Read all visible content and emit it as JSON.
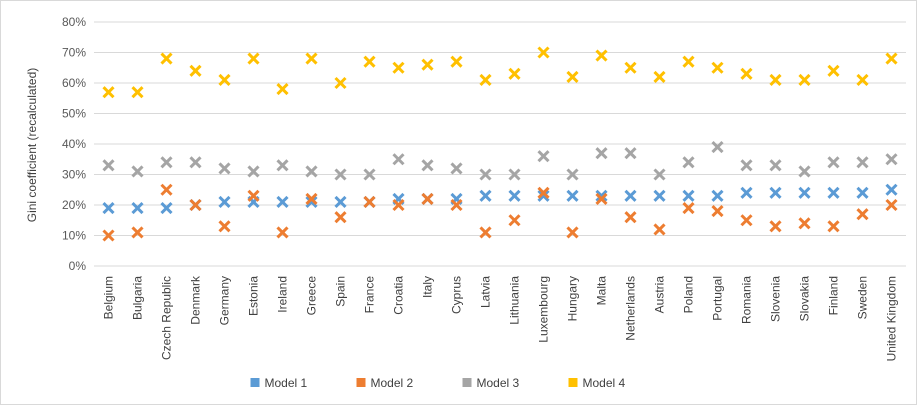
{
  "chart_data": {
    "type": "scatter",
    "title": "",
    "xlabel": "",
    "ylabel": "Gini coefficient (recalculated)",
    "ylim": [
      0,
      0.8
    ],
    "yticks": [
      "0%",
      "10%",
      "20%",
      "30%",
      "40%",
      "50%",
      "60%",
      "70%",
      "80%"
    ],
    "grid": true,
    "legend_position": "bottom",
    "categories": [
      "Belgium",
      "Bulgaria",
      "Czech Republic",
      "Denmark",
      "Germany",
      "Estonia",
      "Ireland",
      "Greece",
      "Spain",
      "France",
      "Croatia",
      "Italy",
      "Cyprus",
      "Latvia",
      "Lithuania",
      "Luxembourg",
      "Hungary",
      "Malta",
      "Netherlands",
      "Austria",
      "Poland",
      "Portugal",
      "Romania",
      "Slovenia",
      "Slovakia",
      "Finland",
      "Sweden",
      "United Kingdom"
    ],
    "series": [
      {
        "name": "Model 1",
        "color": "#5b9bd5",
        "values": [
          0.19,
          0.19,
          0.19,
          0.2,
          0.21,
          0.21,
          0.21,
          0.21,
          0.21,
          0.21,
          0.22,
          0.22,
          0.22,
          0.23,
          0.23,
          0.23,
          0.23,
          0.23,
          0.23,
          0.23,
          0.23,
          0.23,
          0.24,
          0.24,
          0.24,
          0.24,
          0.24,
          0.25
        ]
      },
      {
        "name": "Model 2",
        "color": "#ed7d31",
        "values": [
          0.1,
          0.11,
          0.25,
          0.2,
          0.13,
          0.23,
          0.11,
          0.22,
          0.16,
          0.21,
          0.2,
          0.22,
          0.2,
          0.11,
          0.15,
          0.24,
          0.11,
          0.22,
          0.16,
          0.12,
          0.19,
          0.18,
          0.15,
          0.13,
          0.14,
          0.13,
          0.17,
          0.2
        ]
      },
      {
        "name": "Model 3",
        "color": "#a5a5a5",
        "values": [
          0.33,
          0.31,
          0.34,
          0.34,
          0.32,
          0.31,
          0.33,
          0.31,
          0.3,
          0.3,
          0.35,
          0.33,
          0.32,
          0.3,
          0.3,
          0.36,
          0.3,
          0.37,
          0.37,
          0.3,
          0.34,
          0.39,
          0.33,
          0.33,
          0.31,
          0.34,
          0.34,
          0.35
        ]
      },
      {
        "name": "Model 4",
        "color": "#ffc000",
        "values": [
          0.57,
          0.57,
          0.68,
          0.64,
          0.61,
          0.68,
          0.58,
          0.68,
          0.6,
          0.67,
          0.65,
          0.66,
          0.67,
          0.61,
          0.63,
          0.7,
          0.62,
          0.69,
          0.65,
          0.62,
          0.67,
          0.65,
          0.63,
          0.61,
          0.61,
          0.64,
          0.61,
          0.68
        ]
      }
    ]
  }
}
